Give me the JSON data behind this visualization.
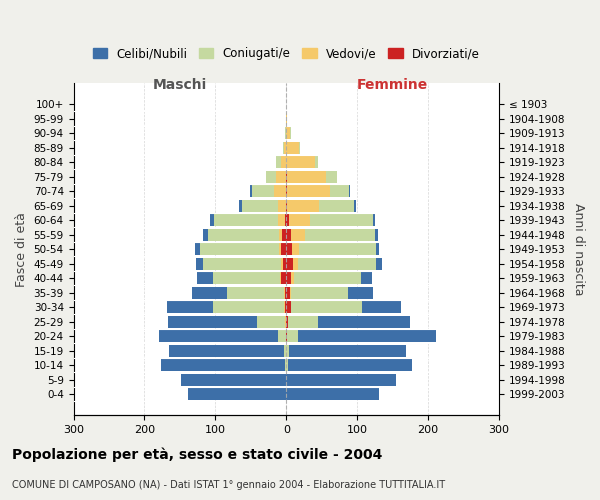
{
  "age_groups": [
    "0-4",
    "5-9",
    "10-14",
    "15-19",
    "20-24",
    "25-29",
    "30-34",
    "35-39",
    "40-44",
    "45-49",
    "50-54",
    "55-59",
    "60-64",
    "65-69",
    "70-74",
    "75-79",
    "80-84",
    "85-89",
    "90-94",
    "95-99",
    "100+"
  ],
  "birth_years": [
    "1999-2003",
    "1994-1998",
    "1989-1993",
    "1984-1988",
    "1979-1983",
    "1974-1978",
    "1969-1973",
    "1964-1968",
    "1959-1963",
    "1954-1958",
    "1949-1953",
    "1944-1948",
    "1939-1943",
    "1934-1938",
    "1929-1933",
    "1924-1928",
    "1919-1923",
    "1914-1918",
    "1909-1913",
    "1904-1908",
    "≤ 1903"
  ],
  "maschi": {
    "celibi": [
      138,
      148,
      175,
      162,
      168,
      125,
      65,
      50,
      22,
      10,
      8,
      7,
      5,
      4,
      3,
      0,
      0,
      0,
      0,
      0,
      0
    ],
    "coniugati": [
      0,
      0,
      2,
      3,
      12,
      40,
      100,
      80,
      95,
      110,
      110,
      100,
      90,
      50,
      30,
      15,
      6,
      2,
      1,
      0,
      0
    ],
    "vedovi": [
      0,
      0,
      0,
      0,
      0,
      1,
      1,
      1,
      2,
      3,
      4,
      5,
      10,
      12,
      18,
      14,
      8,
      3,
      1,
      0,
      0
    ],
    "divorziati": [
      0,
      0,
      0,
      0,
      0,
      1,
      2,
      2,
      7,
      5,
      7,
      6,
      2,
      0,
      0,
      0,
      0,
      0,
      0,
      0,
      0
    ]
  },
  "femmine": {
    "nubili": [
      130,
      155,
      175,
      165,
      195,
      130,
      55,
      35,
      15,
      8,
      5,
      4,
      3,
      2,
      1,
      0,
      0,
      0,
      0,
      0,
      0
    ],
    "coniugate": [
      0,
      0,
      2,
      4,
      15,
      42,
      100,
      80,
      95,
      110,
      108,
      98,
      88,
      50,
      28,
      15,
      5,
      2,
      1,
      0,
      0
    ],
    "vedove": [
      0,
      0,
      0,
      0,
      0,
      1,
      1,
      2,
      5,
      8,
      10,
      20,
      30,
      45,
      60,
      55,
      40,
      18,
      5,
      1,
      0
    ],
    "divorziate": [
      0,
      0,
      0,
      0,
      1,
      2,
      6,
      5,
      6,
      9,
      8,
      7,
      4,
      1,
      1,
      1,
      0,
      0,
      0,
      0,
      0
    ]
  },
  "colors": {
    "celibi_nubili": "#3d6fa8",
    "coniugati_e": "#c5d9a0",
    "vedovi_e": "#f5c96a",
    "divorziati_e": "#cc2222"
  },
  "title": "Popolazione per età, sesso e stato civile - 2004",
  "subtitle": "COMUNE DI CAMPOSANO (NA) - Dati ISTAT 1° gennaio 2004 - Elaborazione TUTTITALIA.IT",
  "xlabel_left": "Maschi",
  "xlabel_right": "Femmine",
  "ylabel_left": "Fasce di età",
  "ylabel_right": "Anni di nascita",
  "xlim": 300,
  "legend_labels": [
    "Celibi/Nubili",
    "Coniugati/e",
    "Vedovi/e",
    "Divorziati/e"
  ],
  "bg_color": "#f0f0eb",
  "plot_bg": "#ffffff"
}
